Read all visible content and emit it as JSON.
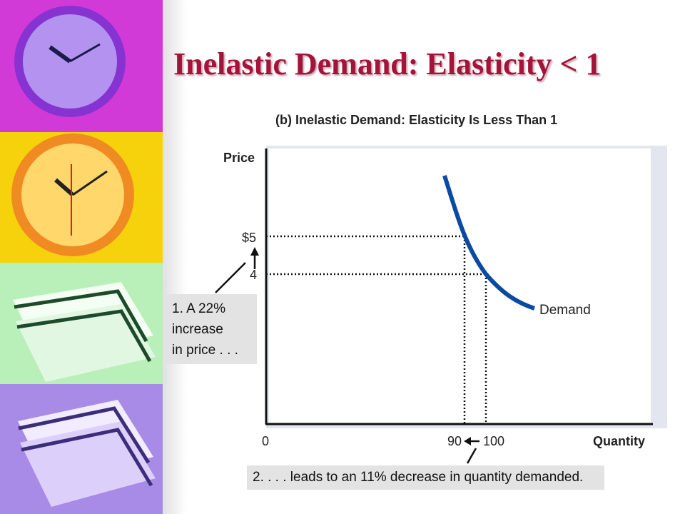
{
  "slide": {
    "title": "Inelastic Demand: Elasticity < 1"
  },
  "chart": {
    "title": "(b) Inelastic Demand: Elasticity Is Less Than 1",
    "y_axis_label": "Price",
    "x_axis_label": "Quantity",
    "origin_label": "0",
    "price_ticks": [
      "$5",
      "4"
    ],
    "quantity_ticks": [
      "90",
      "100"
    ],
    "curve_label": "Demand"
  },
  "callouts": {
    "price_change": [
      "1. A 22%",
      "increase",
      "in price . . ."
    ],
    "quantity_change": "2. . . . leads to an 11% decrease in quantity demanded."
  },
  "colors": {
    "title": "#a3133a",
    "demand_curve": "#0b4aa2",
    "callout_bg": "#e3e3e3"
  },
  "chart_data": {
    "type": "line",
    "series": [
      {
        "name": "Demand",
        "points": [
          {
            "x": 90,
            "y": 5
          },
          {
            "x": 100,
            "y": 4
          }
        ]
      }
    ],
    "guides": [
      {
        "x": 90,
        "y": 5
      },
      {
        "x": 100,
        "y": 4
      }
    ],
    "xlabel": "Quantity",
    "ylabel": "Price",
    "xticks": [
      "0",
      "90",
      "100"
    ],
    "yticks": [
      "$5",
      "4"
    ],
    "annotations": [
      "1. A 22% increase in price . . .",
      "2. . . . leads to an 11% decrease in quantity demanded."
    ]
  }
}
